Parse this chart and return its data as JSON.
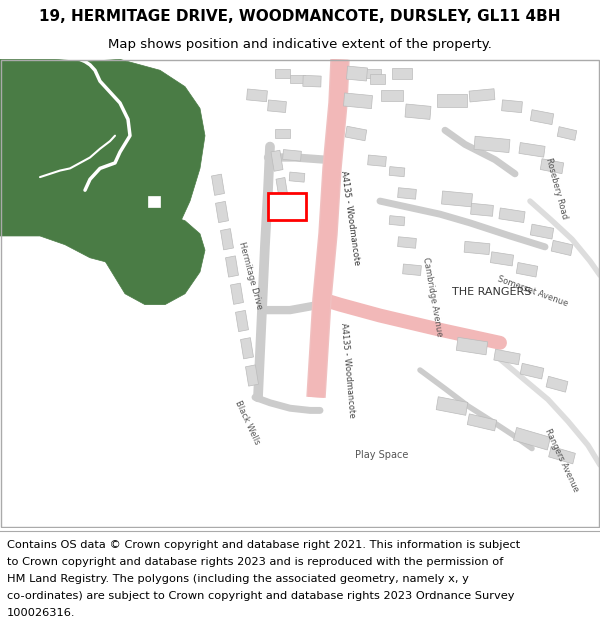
{
  "title": "19, HERMITAGE DRIVE, WOODMANCOTE, DURSLEY, GL11 4BH",
  "subtitle": "Map shows position and indicative extent of the property.",
  "footer_lines": [
    "Contains OS data © Crown copyright and database right 2021. This information is subject",
    "to Crown copyright and database rights 2023 and is reproduced with the permission of",
    "HM Land Registry. The polygons (including the associated geometry, namely x, y",
    "co-ordinates) are subject to Crown copyright and database rights 2023 Ordnance Survey",
    "100026316."
  ],
  "title_fontsize": 11,
  "subtitle_fontsize": 9.5,
  "footer_fontsize": 8.2,
  "map_bg": "#ffffff",
  "green_color": "#4a7c45",
  "road_color": "#f2b8b8",
  "building_color": "#d8d8d8",
  "highlight_color": "#ff0000",
  "text_color": "#333333",
  "border_color": "#aaaaaa"
}
